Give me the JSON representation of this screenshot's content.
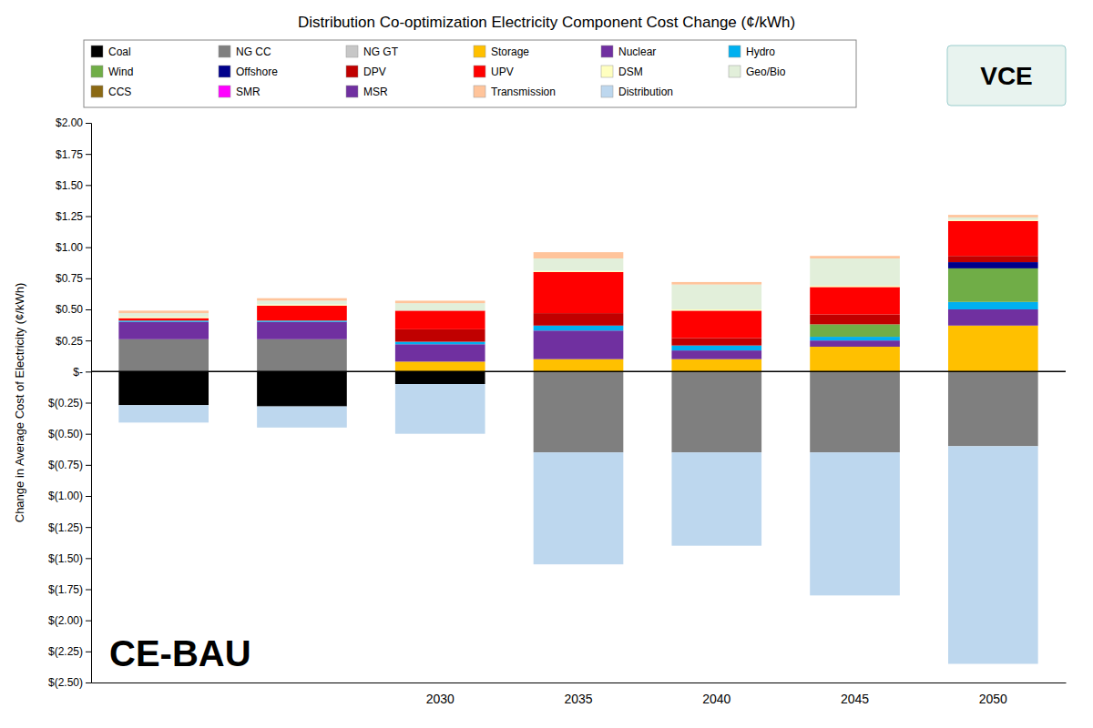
{
  "chart_data": {
    "type": "bar",
    "stacked": true,
    "title": "Distribution Co-optimization Electricity Component Cost Change (¢/kWh)",
    "y_label": "Change in Average Cost of Electricity (¢/kWh)",
    "categories": [
      null,
      null,
      "2030",
      "2035",
      "2040",
      "2045",
      "2050"
    ],
    "series": [
      {
        "name": "Coal",
        "color": "#000000",
        "values": [
          -0.27,
          -0.28,
          -0.1,
          0,
          0,
          0,
          0
        ]
      },
      {
        "name": "NG CC",
        "color": "#7f7f7f",
        "values": [
          0.26,
          0.26,
          0,
          -0.65,
          -0.65,
          -0.65,
          -0.6
        ]
      },
      {
        "name": "NG GT",
        "color": "#c7c7c7",
        "values": [
          0,
          0,
          0,
          0,
          0,
          0,
          0
        ]
      },
      {
        "name": "Storage",
        "color": "#ffc000",
        "values": [
          0,
          0,
          0.08,
          0.1,
          0.1,
          0.2,
          0.37
        ]
      },
      {
        "name": "Nuclear",
        "color": "#7030a0",
        "values": [
          0.14,
          0.14,
          0.14,
          0.23,
          0.07,
          0.05,
          0.13
        ]
      },
      {
        "name": "Hydro",
        "color": "#00b0f0",
        "values": [
          0.01,
          0.01,
          0.02,
          0.04,
          0.04,
          0.03,
          0.06
        ]
      },
      {
        "name": "Wind",
        "color": "#70ad47",
        "values": [
          0,
          0,
          0,
          0,
          0,
          0.1,
          0.27
        ]
      },
      {
        "name": "Offshore",
        "color": "#00008b",
        "values": [
          0,
          0,
          0,
          0,
          0,
          0,
          0.05
        ]
      },
      {
        "name": "DPV",
        "color": "#c00000",
        "values": [
          0,
          0,
          0.1,
          0.1,
          0.06,
          0.08,
          0.05
        ]
      },
      {
        "name": "UPV",
        "color": "#ff0000",
        "values": [
          0.02,
          0.12,
          0.15,
          0.33,
          0.22,
          0.22,
          0.28
        ]
      },
      {
        "name": "DSM",
        "color": "#ffffc0",
        "values": [
          0.01,
          0.01,
          0,
          0.01,
          0.01,
          0.01,
          0.01
        ]
      },
      {
        "name": "Geo/Bio",
        "color": "#e2efda",
        "values": [
          0.03,
          0.03,
          0.06,
          0.1,
          0.2,
          0.22,
          0.02
        ]
      },
      {
        "name": "CCS",
        "color": "#8b6914",
        "values": [
          0,
          0,
          0,
          0,
          0,
          0,
          0
        ]
      },
      {
        "name": "SMR",
        "color": "#ff00ff",
        "values": [
          0,
          0,
          0,
          0,
          0,
          0,
          0
        ]
      },
      {
        "name": "MSR",
        "color": "#7030a0",
        "values": [
          0,
          0,
          0,
          0,
          0,
          0,
          0
        ]
      },
      {
        "name": "Transmission",
        "color": "#ffc49b",
        "values": [
          0.02,
          0.02,
          0.02,
          0.05,
          0.02,
          0.02,
          0.02
        ]
      },
      {
        "name": "Distribution",
        "color": "#bdd7ee",
        "values": [
          -0.14,
          -0.17,
          -0.4,
          -0.9,
          -0.75,
          -1.15,
          -1.75
        ]
      }
    ],
    "ylim": [
      -2.5,
      2.0
    ],
    "yticks": [
      {
        "value": -2.5,
        "label": "$(2.50)"
      },
      {
        "value": -2.25,
        "label": "$(2.25)"
      },
      {
        "value": -2.0,
        "label": "$(2.00)"
      },
      {
        "value": -1.75,
        "label": "$(1.75)"
      },
      {
        "value": -1.5,
        "label": "$(1.50)"
      },
      {
        "value": -1.25,
        "label": "$(1.25)"
      },
      {
        "value": -1.0,
        "label": "$(1.00)"
      },
      {
        "value": -0.75,
        "label": "$(0.75)"
      },
      {
        "value": -0.5,
        "label": "$(0.50)"
      },
      {
        "value": -0.25,
        "label": "$(0.25)"
      },
      {
        "value": 0,
        "label": "$-"
      },
      {
        "value": 0.25,
        "label": "$0.25"
      },
      {
        "value": 0.5,
        "label": "$0.50"
      },
      {
        "value": 0.75,
        "label": "$0.75"
      },
      {
        "value": 1.0,
        "label": "$1.00"
      },
      {
        "value": 1.25,
        "label": "$1.25"
      },
      {
        "value": 1.5,
        "label": "$1.50"
      },
      {
        "value": 1.75,
        "label": "$1.75"
      },
      {
        "value": 2.0,
        "label": "$2.00"
      }
    ],
    "annotations": [
      "CE-BAU",
      "VCE"
    ],
    "grid": false,
    "legend": "top"
  }
}
